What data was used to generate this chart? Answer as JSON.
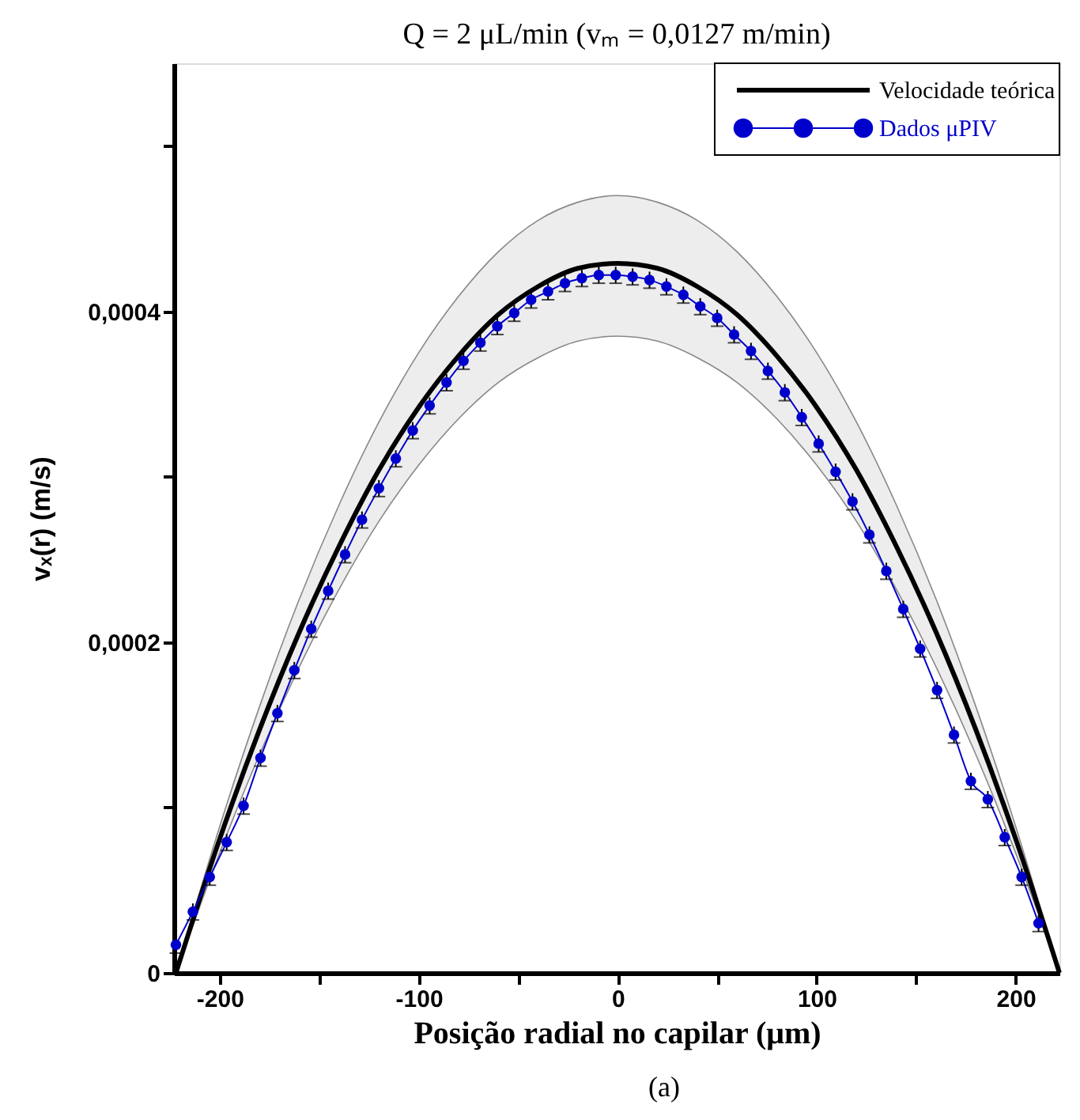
{
  "chart_data": {
    "type": "line",
    "title": "Q = 2 μL/min (vₘ = 0,0127 m/min)",
    "xlabel": "Posição radial no capilar (μm)",
    "ylabel": "vₓ(r) (m/s)",
    "annotations": [
      "(a)"
    ],
    "xlim": [
      -223,
      222
    ],
    "ylim": [
      0,
      0.00055
    ],
    "xticks": [
      -200,
      {
        "value": -150,
        "label": null
      },
      -100,
      {
        "value": -50,
        "label": null
      },
      0,
      {
        "value": 50,
        "label": null
      },
      100,
      {
        "value": 150,
        "label": null
      },
      200
    ],
    "yticks": [
      0,
      {
        "value": 0.0001,
        "label": null
      },
      {
        "value": 0.0002,
        "label": "0,0002"
      },
      {
        "value": 0.0003,
        "label": null
      },
      {
        "value": 0.0004,
        "label": "0,0004"
      },
      {
        "value": 0.0005,
        "label": null
      }
    ],
    "grid": false,
    "legend": "top right",
    "series": [
      {
        "name": "Velocidade teórica",
        "color": "#000000",
        "marker": "none",
        "line_style": "solid",
        "x": [
          -222,
          -200,
          -180,
          -160,
          -140,
          -120,
          -100,
          -80,
          -60,
          -40,
          -20,
          0,
          20,
          40,
          60,
          80,
          100,
          120,
          140,
          160,
          180,
          200,
          222
        ],
        "values": [
          0,
          8.1e-05,
          0.000147,
          0.000206,
          0.000258,
          0.000304,
          0.000342,
          0.000373,
          0.000398,
          0.000415,
          0.000426,
          0.000429,
          0.000426,
          0.000415,
          0.000398,
          0.000373,
          0.000342,
          0.000304,
          0.000258,
          0.000206,
          0.000147,
          8.1e-05,
          0
        ],
        "upper": [
          0,
          8.85e-05,
          0.000161,
          0.000226,
          0.000283,
          0.000333,
          0.000375,
          0.000409,
          0.000436,
          0.000455,
          0.000466,
          0.00047,
          0.000466,
          0.000455,
          0.000436,
          0.000409,
          0.000375,
          0.000333,
          0.000283,
          0.000226,
          0.000161,
          8.85e-05,
          0
        ],
        "lower": [
          0,
          7.25e-05,
          0.000132,
          0.000185,
          0.000232,
          0.000273,
          0.000307,
          0.000335,
          0.000357,
          0.000372,
          0.000382,
          0.000385,
          0.000382,
          0.000372,
          0.000357,
          0.000335,
          0.000307,
          0.000273,
          0.000232,
          0.000185,
          0.000132,
          7.25e-05,
          0
        ]
      },
      {
        "name": "Dados μPIV",
        "color": "#0000cc",
        "marker": "circle",
        "line_style": "solid",
        "x": [
          -222,
          -213.5,
          -205,
          -196.5,
          -188,
          -179.5,
          -171,
          -162.5,
          -154,
          -145.5,
          -137,
          -128.5,
          -120,
          -111.5,
          -103,
          -94.5,
          -86,
          -77.5,
          -69,
          -60.5,
          -52,
          -43.5,
          -35,
          -26.5,
          -18,
          -9.5,
          -1,
          7.5,
          16,
          24.5,
          33,
          41.5,
          50,
          58.5,
          67,
          75.5,
          84,
          92.5,
          101,
          109.5,
          118,
          126.5,
          135,
          143.5,
          152,
          160.5,
          169,
          177.5,
          186,
          194.5,
          203,
          211.5
        ],
        "values": [
          1.7e-05,
          3.7e-05,
          5.8e-05,
          7.9e-05,
          0.000101,
          0.00013,
          0.000157,
          0.000183,
          0.000208,
          0.000231,
          0.000253,
          0.000274,
          0.000293,
          0.000311,
          0.000328,
          0.000343,
          0.000357,
          0.00037,
          0.000381,
          0.000391,
          0.000399,
          0.000407,
          0.000412,
          0.000417,
          0.00042,
          0.000422,
          0.000422,
          0.000421,
          0.000419,
          0.000415,
          0.00041,
          0.000403,
          0.000396,
          0.000386,
          0.000376,
          0.000364,
          0.000351,
          0.000336,
          0.00032,
          0.000303,
          0.000285,
          0.000265,
          0.000243,
          0.00022,
          0.000196,
          0.000171,
          0.000144,
          0.000116,
          0.000105,
          8.2e-05,
          5.8e-05,
          3e-05
        ],
        "errors": [
          5e-06,
          5e-06,
          5e-06,
          5e-06,
          5e-06,
          5e-06,
          5e-06,
          5e-06,
          5e-06,
          5e-06,
          5e-06,
          5e-06,
          5e-06,
          5e-06,
          5e-06,
          5e-06,
          5e-06,
          5e-06,
          5e-06,
          5e-06,
          5e-06,
          5e-06,
          5e-06,
          5e-06,
          5e-06,
          5e-06,
          5e-06,
          5e-06,
          5e-06,
          5e-06,
          5e-06,
          5e-06,
          5e-06,
          5e-06,
          5e-06,
          5e-06,
          5e-06,
          5e-06,
          5e-06,
          5e-06,
          5e-06,
          5e-06,
          5e-06,
          5e-06,
          5e-06,
          5e-06,
          5e-06,
          5e-06,
          5e-06,
          5e-06,
          5e-06,
          5e-06
        ]
      }
    ]
  }
}
